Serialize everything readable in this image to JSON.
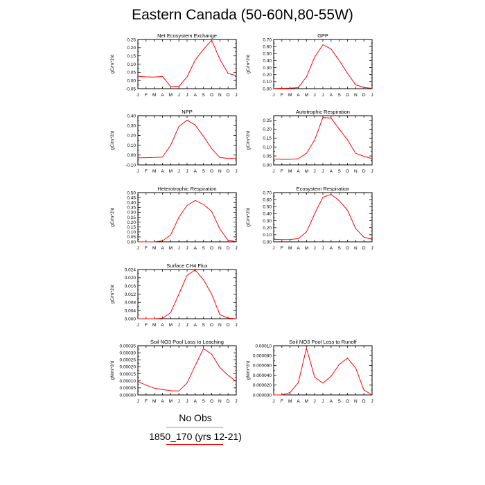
{
  "page": {
    "title": "Eastern Canada (50-60N,80-55W)"
  },
  "legend": {
    "entries": [
      {
        "label": "No Obs",
        "color": "#999999"
      },
      {
        "label": "1850_170 (yrs 12-21)",
        "color": "#ff0000"
      }
    ]
  },
  "chart_data": [
    {
      "type": "line",
      "title": "Net Ecosystem Exchange",
      "ylabel": "gC/m^2/d",
      "categories": [
        "J",
        "F",
        "M",
        "A",
        "M",
        "J",
        "J",
        "A",
        "S",
        "O",
        "N",
        "D",
        "J"
      ],
      "ylim": [
        -0.05,
        0.25
      ],
      "yticks": [
        -0.05,
        0.0,
        0.05,
        0.1,
        0.15,
        0.2,
        0.25
      ],
      "ytick_labels": [
        "-0.05",
        "0.00",
        "0.05",
        "0.10",
        "0.15",
        "0.20",
        "0.25"
      ],
      "series": [
        {
          "color": "#ff0000",
          "values": [
            0.025,
            0.022,
            0.021,
            0.025,
            -0.037,
            -0.036,
            0.022,
            0.125,
            0.19,
            0.245,
            0.13,
            0.043,
            0.03
          ]
        }
      ]
    },
    {
      "type": "line",
      "title": "GPP",
      "ylabel": "gC/m^2/d",
      "categories": [
        "J",
        "F",
        "M",
        "A",
        "M",
        "J",
        "J",
        "A",
        "S",
        "O",
        "N",
        "D",
        "J"
      ],
      "ylim": [
        0.0,
        0.7
      ],
      "yticks": [
        0.0,
        0.1,
        0.2,
        0.3,
        0.4,
        0.5,
        0.6,
        0.7
      ],
      "ytick_labels": [
        "0.00",
        "0.10",
        "0.20",
        "0.30",
        "0.40",
        "0.50",
        "0.60",
        "0.70"
      ],
      "series": [
        {
          "color": "#ff0000",
          "values": [
            0.003,
            0.005,
            0.007,
            0.015,
            0.17,
            0.45,
            0.625,
            0.565,
            0.4,
            0.22,
            0.055,
            0.018,
            0.005
          ]
        }
      ]
    },
    {
      "type": "line",
      "title": "NPP",
      "ylabel": "gC/m^2/d",
      "categories": [
        "J",
        "F",
        "M",
        "A",
        "M",
        "J",
        "J",
        "A",
        "S",
        "O",
        "N",
        "D",
        "J"
      ],
      "ylim": [
        -0.1,
        0.4
      ],
      "yticks": [
        -0.1,
        0.0,
        0.1,
        0.2,
        0.3,
        0.4
      ],
      "ytick_labels": [
        "-0.10",
        "0.00",
        "0.10",
        "0.20",
        "0.30",
        "0.40"
      ],
      "series": [
        {
          "color": "#ff0000",
          "values": [
            -0.028,
            -0.027,
            -0.025,
            -0.02,
            0.1,
            0.29,
            0.355,
            0.305,
            0.19,
            0.065,
            -0.025,
            -0.035,
            -0.03
          ]
        }
      ]
    },
    {
      "type": "line",
      "title": "Autotrophic Respiration",
      "ylabel": "gC/m^2/d",
      "categories": [
        "J",
        "F",
        "M",
        "A",
        "M",
        "J",
        "J",
        "A",
        "S",
        "O",
        "N",
        "D",
        "J"
      ],
      "ylim": [
        0.0,
        0.275
      ],
      "yticks": [
        0.0,
        0.05,
        0.1,
        0.15,
        0.2,
        0.25
      ],
      "ytick_labels": [
        "0.00",
        "0.05",
        "0.10",
        "0.15",
        "0.20",
        "0.25"
      ],
      "series": [
        {
          "color": "#ff0000",
          "values": [
            0.033,
            0.031,
            0.031,
            0.035,
            0.065,
            0.14,
            0.265,
            0.262,
            0.2,
            0.14,
            0.065,
            0.048,
            0.035
          ]
        }
      ]
    },
    {
      "type": "line",
      "title": "Heterotrophic Respiration",
      "ylabel": "gC/m^2/d",
      "categories": [
        "J",
        "F",
        "M",
        "A",
        "M",
        "J",
        "J",
        "A",
        "S",
        "O",
        "N",
        "D",
        "J"
      ],
      "ylim": [
        0.0,
        0.5
      ],
      "yticks": [
        0.0,
        0.05,
        0.1,
        0.15,
        0.2,
        0.25,
        0.3,
        0.35,
        0.4,
        0.45,
        0.5
      ],
      "ytick_labels": [
        "0.00",
        "0.05",
        "0.10",
        "0.15",
        "0.20",
        "0.25",
        "0.30",
        "0.35",
        "0.40",
        "0.45",
        "0.50"
      ],
      "series": [
        {
          "color": "#ff0000",
          "values": [
            0.0,
            0.0,
            0.0,
            0.01,
            0.07,
            0.25,
            0.37,
            0.42,
            0.38,
            0.31,
            0.13,
            0.015,
            0.002
          ]
        }
      ]
    },
    {
      "type": "line",
      "title": "Ecosystem Respiration",
      "ylabel": "gC/m^2/d",
      "categories": [
        "J",
        "F",
        "M",
        "A",
        "M",
        "J",
        "J",
        "A",
        "S",
        "O",
        "N",
        "D",
        "J"
      ],
      "ylim": [
        0.0,
        0.7
      ],
      "yticks": [
        0.0,
        0.1,
        0.2,
        0.3,
        0.4,
        0.5,
        0.6,
        0.7
      ],
      "ytick_labels": [
        "0.00",
        "0.10",
        "0.20",
        "0.30",
        "0.40",
        "0.50",
        "0.60",
        "0.70"
      ],
      "series": [
        {
          "color": "#ff0000",
          "values": [
            0.035,
            0.033,
            0.034,
            0.045,
            0.14,
            0.4,
            0.635,
            0.675,
            0.585,
            0.45,
            0.19,
            0.065,
            0.035
          ]
        }
      ]
    },
    {
      "type": "line",
      "title": "Surface CH4 Flux",
      "ylabel": "gC/m^2/d",
      "categories": [
        "J",
        "F",
        "M",
        "A",
        "M",
        "J",
        "J",
        "A",
        "S",
        "O",
        "N",
        "D",
        "J"
      ],
      "ylim": [
        0.0,
        0.024
      ],
      "yticks": [
        0.0,
        0.004,
        0.008,
        0.012,
        0.016,
        0.02,
        0.024
      ],
      "ytick_labels": [
        "0.000",
        "0.004",
        "0.008",
        "0.012",
        "0.016",
        "0.020",
        "0.024"
      ],
      "series": [
        {
          "color": "#ff0000",
          "values": [
            0.0,
            0.0,
            0.0,
            0.0002,
            0.003,
            0.012,
            0.0212,
            0.0238,
            0.019,
            0.012,
            0.002,
            0.0003,
            0.0
          ]
        }
      ]
    },
    {
      "type": "line",
      "title": "Soil NO3 Pool Loss to Leaching",
      "ylabel": "gN/m^2/d",
      "categories": [
        "J",
        "F",
        "M",
        "A",
        "M",
        "J",
        "J",
        "A",
        "S",
        "O",
        "N",
        "D",
        "J"
      ],
      "ylim": [
        0.0,
        0.00035
      ],
      "yticks": [
        0.0,
        5e-05,
        0.0001,
        0.00015,
        0.0002,
        0.00025,
        0.0003,
        0.00035
      ],
      "ytick_labels": [
        "0.00000",
        "0.00005",
        "0.00010",
        "0.00015",
        "0.00020",
        "0.00025",
        "0.00030",
        "0.00035"
      ],
      "series": [
        {
          "color": "#ff0000",
          "values": [
            9.5e-05,
            7e-05,
            4.8e-05,
            3.8e-05,
            3e-05,
            2.8e-05,
            8.5e-05,
            0.00021,
            0.00033,
            0.00029,
            0.000195,
            0.00014,
            9.5e-05
          ]
        }
      ]
    },
    {
      "type": "line",
      "title": "Soil NO3 Pool Loss to Runoff",
      "ylabel": "gN/m^2/d",
      "categories": [
        "J",
        "F",
        "M",
        "A",
        "M",
        "J",
        "J",
        "A",
        "S",
        "O",
        "N",
        "D",
        "J"
      ],
      "ylim": [
        0.0,
        0.0001
      ],
      "yticks": [
        0.0,
        2e-05,
        4e-05,
        6e-05,
        8e-05,
        0.0001
      ],
      "ytick_labels": [
        "0.000000",
        "0.000020",
        "0.000040",
        "0.000060",
        "0.000080",
        "0.00010"
      ],
      "series": [
        {
          "color": "#ff0000",
          "values": [
            0.0,
            0.0,
            5e-06,
            2.5e-05,
            9.5e-05,
            3.6e-05,
            2.4e-05,
            3.8e-05,
            6.2e-05,
            7.5e-05,
            5.5e-05,
            1e-05,
            0.0
          ]
        }
      ]
    }
  ]
}
